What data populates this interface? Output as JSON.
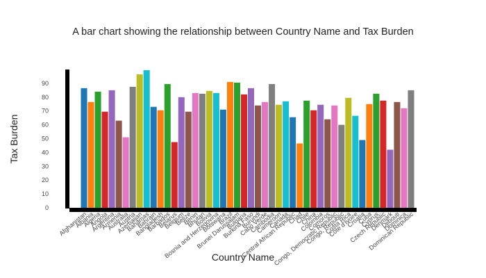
{
  "chart_data": {
    "type": "bar",
    "title": "A bar chart showing the relationship between Country Name and Tax Burden",
    "xlabel": "Country Name",
    "ylabel": "Tax Burden",
    "ylim": [
      0,
      100
    ],
    "yticks": [
      0,
      10,
      20,
      30,
      40,
      50,
      60,
      70,
      80,
      90
    ],
    "grid": false,
    "legend": "none",
    "categories": [
      "Afghanistan",
      "Albania",
      "Algeria",
      "Angola",
      "Argentina",
      "Armenia",
      "Australia",
      "Austria",
      "Azerbaijan",
      "Bahamas",
      "Bahrain",
      "Bangladesh",
      "Barbados",
      "Belarus",
      "Belgium",
      "Belize",
      "Benin",
      "Bhutan",
      "Bolivia",
      "Bosnia and Herzegovina",
      "Botswana",
      "Brazil",
      "Brunei Darussalam",
      "Bulgaria",
      "Burkina Faso",
      "Burundi",
      "Cabo Verde",
      "Cambodia",
      "Cameroon",
      "Canada",
      "Central African Republic",
      "Chad",
      "Chile",
      "China",
      "Colombia",
      "Comoros",
      "Congo, Democratic Republic",
      "Congo, Republic",
      "Costa Rica",
      "Côte d'Ivoire",
      "Croatia",
      "Cuba",
      "Cyprus",
      "Czech Republic",
      "Denmark",
      "Djibouti",
      "Dominica",
      "Dominican Republic"
    ],
    "values": [
      86.5,
      76.5,
      84,
      69.5,
      85,
      63,
      51,
      87.5,
      96.5,
      99.5,
      73,
      70.5,
      89.5,
      47.5,
      80,
      69.5,
      83,
      82.5,
      84.5,
      83,
      71,
      91,
      90.5,
      82,
      86.5,
      74,
      76.5,
      89.5,
      74.5,
      77,
      65.5,
      46.5,
      77.5,
      70.5,
      74.5,
      64,
      74,
      60,
      79.5,
      66.5,
      49,
      75,
      82.5,
      77.5,
      42,
      76.5,
      72,
      85
    ],
    "colors": [
      "#1f77b4",
      "#ff7f0e",
      "#2ca02c",
      "#d62728",
      "#9467bd",
      "#8c564b",
      "#e377c2",
      "#7f7f7f",
      "#bcbd22",
      "#17becf"
    ]
  }
}
